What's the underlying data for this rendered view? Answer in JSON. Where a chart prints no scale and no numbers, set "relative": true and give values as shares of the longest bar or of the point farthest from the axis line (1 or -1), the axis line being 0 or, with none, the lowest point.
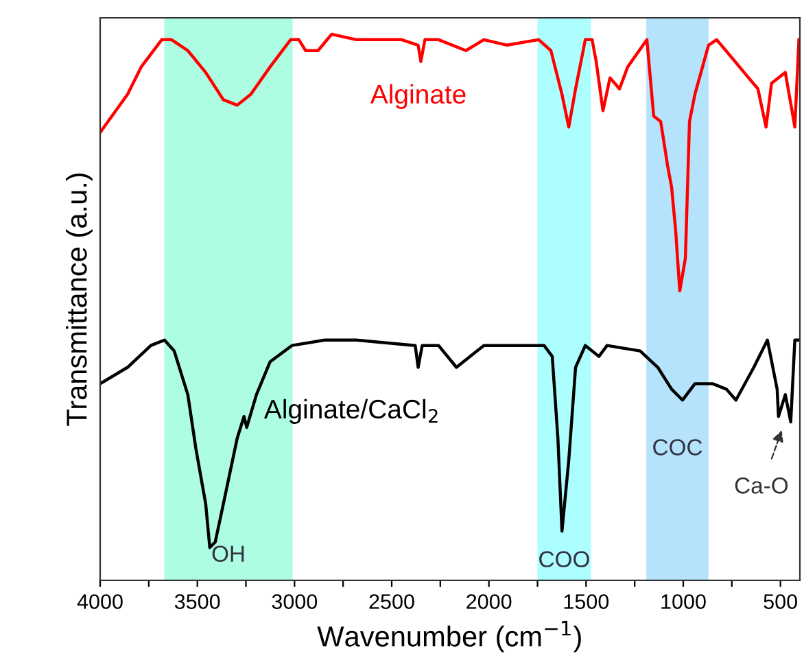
{
  "chart_data": {
    "type": "line",
    "relative": true,
    "xlabel": "Wavenumber (cm$^{−1}$)",
    "ylabel": "Transmittance (a.u.)",
    "xlim": [
      4000,
      400
    ],
    "xticks": [
      4000,
      {
        "value": 3750,
        "label": null
      },
      3500,
      {
        "value": 3250,
        "label": null
      },
      3000,
      {
        "value": 2750,
        "label": null
      },
      2500,
      {
        "value": 2250,
        "label": null
      },
      2000,
      {
        "value": 1750,
        "label": null
      },
      1500,
      {
        "value": 1250,
        "label": null
      },
      1000,
      {
        "value": 750,
        "label": null
      },
      500
    ],
    "grid": false,
    "legend": false,
    "marker": "none",
    "line_style": "solid",
    "series": [
      {
        "name": "Alginate",
        "color": "#ff0000",
        "x": [
          4000,
          3859,
          3789,
          3683,
          3633,
          3549,
          3457,
          3366,
          3295,
          3225,
          3126,
          3020,
          2978,
          2943,
          2879,
          2809,
          2682,
          2449,
          2364,
          2350,
          2329,
          2259,
          2118,
          2026,
          1906,
          1744,
          1681,
          1624,
          1589,
          1554,
          1504,
          1469,
          1448,
          1413,
          1377,
          1328,
          1286,
          1187,
          1152,
          1116,
          1081,
          1060,
          1039,
          1018,
          989,
          968,
          940,
          870,
          828,
          757,
          687,
          616,
          574,
          546,
          475,
          426,
          405
        ],
        "values": [
          0.82,
          0.89,
          0.94,
          0.99,
          0.99,
          0.97,
          0.93,
          0.88,
          0.87,
          0.89,
          0.94,
          0.99,
          0.99,
          0.97,
          0.97,
          1.0,
          0.99,
          0.99,
          0.98,
          0.95,
          0.99,
          0.99,
          0.97,
          0.99,
          0.98,
          0.99,
          0.97,
          0.89,
          0.83,
          0.9,
          0.99,
          0.99,
          0.95,
          0.86,
          0.92,
          0.9,
          0.94,
          0.99,
          0.85,
          0.84,
          0.76,
          0.72,
          0.64,
          0.53,
          0.59,
          0.84,
          0.89,
          0.98,
          0.99,
          0.96,
          0.93,
          0.9,
          0.83,
          0.91,
          0.93,
          0.83,
          0.99
        ]
      },
      {
        "name": "Alginate/CaCl$_{2}$",
        "color": "#000000",
        "x": [
          4000,
          3859,
          3739,
          3669,
          3619,
          3549,
          3507,
          3457,
          3436,
          3408,
          3366,
          3295,
          3260,
          3246,
          3196,
          3126,
          3013,
          2844,
          2682,
          2379,
          2364,
          2343,
          2259,
          2167,
          2026,
          1716,
          1674,
          1645,
          1624,
          1589,
          1554,
          1504,
          1434,
          1392,
          1222,
          1131,
          1060,
          1004,
          940,
          849,
          778,
          729,
          637,
          567,
          517,
          510,
          475,
          447,
          426,
          405
        ],
        "values": [
          0.36,
          0.39,
          0.43,
          0.44,
          0.42,
          0.34,
          0.24,
          0.14,
          0.06,
          0.07,
          0.14,
          0.26,
          0.3,
          0.28,
          0.34,
          0.4,
          0.43,
          0.44,
          0.44,
          0.43,
          0.39,
          0.43,
          0.43,
          0.39,
          0.43,
          0.43,
          0.41,
          0.26,
          0.09,
          0.22,
          0.39,
          0.43,
          0.41,
          0.43,
          0.42,
          0.39,
          0.35,
          0.33,
          0.36,
          0.36,
          0.35,
          0.33,
          0.39,
          0.44,
          0.35,
          0.3,
          0.34,
          0.29,
          0.44,
          0.44
        ]
      }
    ],
    "bands": [
      {
        "axis": "x",
        "from": 3670,
        "to": 3010,
        "label": "OH",
        "color": "#adfde2"
      },
      {
        "axis": "x",
        "from": 1750,
        "to": 1475,
        "label": "COO",
        "color": "#adffff"
      },
      {
        "axis": "x",
        "from": 1190,
        "to": 870,
        "label": "COC",
        "color": "#b5e3fc"
      }
    ],
    "annotations": [
      "Ca-O"
    ]
  }
}
